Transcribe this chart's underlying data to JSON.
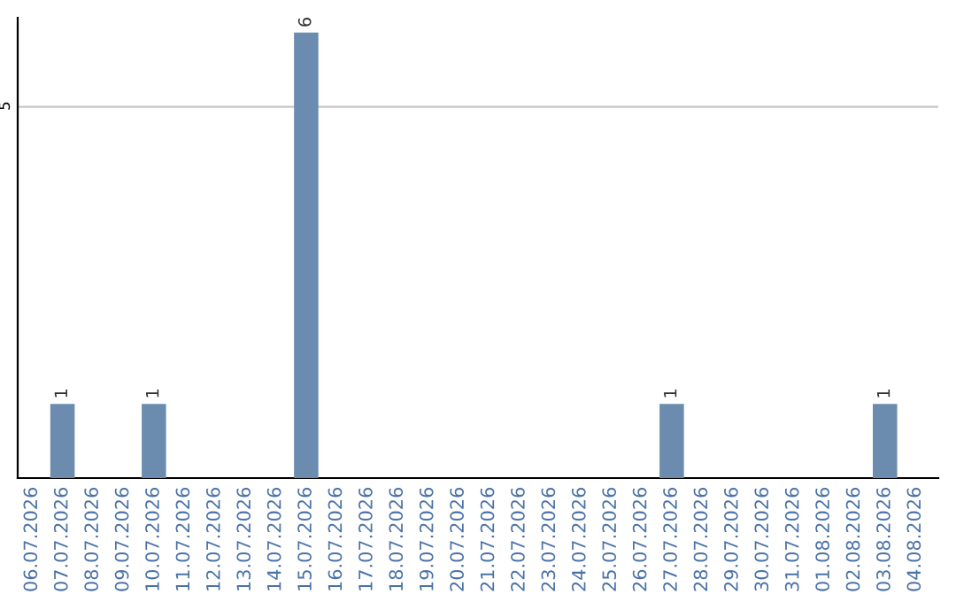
{
  "chart_data": {
    "type": "bar",
    "categories": [
      "06.07.2026",
      "07.07.2026",
      "08.07.2026",
      "09.07.2026",
      "10.07.2026",
      "11.07.2026",
      "12.07.2026",
      "13.07.2026",
      "14.07.2026",
      "15.07.2026",
      "16.07.2026",
      "17.07.2026",
      "18.07.2026",
      "19.07.2026",
      "20.07.2026",
      "21.07.2026",
      "22.07.2026",
      "23.07.2026",
      "24.07.2026",
      "25.07.2026",
      "26.07.2026",
      "27.07.2026",
      "28.07.2026",
      "29.07.2026",
      "30.07.2026",
      "31.07.2026",
      "01.08.2026",
      "02.08.2026",
      "03.08.2026",
      "04.08.2026"
    ],
    "values": [
      0,
      1,
      0,
      0,
      1,
      0,
      0,
      0,
      0,
      6,
      0,
      0,
      0,
      0,
      0,
      0,
      0,
      0,
      0,
      0,
      0,
      1,
      0,
      0,
      0,
      0,
      0,
      0,
      1,
      0
    ],
    "value_labels": [
      null,
      "1",
      null,
      null,
      "1",
      null,
      null,
      null,
      null,
      "6",
      null,
      null,
      null,
      null,
      null,
      null,
      null,
      null,
      null,
      null,
      null,
      "1",
      null,
      null,
      null,
      null,
      null,
      null,
      "1",
      null
    ],
    "color": "#6b8cae",
    "ylim": [
      0,
      6.2
    ],
    "yticks": [
      5
    ],
    "grid": "y"
  }
}
